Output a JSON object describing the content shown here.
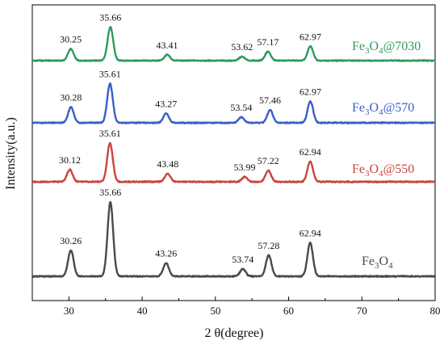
{
  "chart_data": {
    "type": "line",
    "xlabel": "2 θ(degree)",
    "ylabel": "Intensity(a.u.)",
    "xlim": [
      25,
      80
    ],
    "x_ticks": [
      30,
      40,
      50,
      60,
      70,
      80
    ],
    "grid": false,
    "series": [
      {
        "name": "Fe3O4@7030",
        "legend_parts": [
          "Fe",
          "3",
          "O",
          "4",
          "@7030"
        ],
        "color": "#2e9a5e",
        "peaks": [
          {
            "x": 30.25,
            "height": 0.18,
            "label": "30.25"
          },
          {
            "x": 35.66,
            "height": 0.52,
            "label": "35.66"
          },
          {
            "x": 43.41,
            "height": 0.09,
            "label": "43.41"
          },
          {
            "x": 53.62,
            "height": 0.06,
            "label": "53.62"
          },
          {
            "x": 57.17,
            "height": 0.14,
            "label": "57.17"
          },
          {
            "x": 62.97,
            "height": 0.22,
            "label": "62.97"
          }
        ]
      },
      {
        "name": "Fe3O4@570",
        "legend_parts": [
          "Fe",
          "3",
          "O",
          "4",
          "@570"
        ],
        "color": "#3a5fc8",
        "peaks": [
          {
            "x": 30.28,
            "height": 0.22,
            "label": "30.28"
          },
          {
            "x": 35.61,
            "height": 0.55,
            "label": "35.61"
          },
          {
            "x": 43.27,
            "height": 0.13,
            "label": "43.27"
          },
          {
            "x": 53.54,
            "height": 0.08,
            "label": "53.54"
          },
          {
            "x": 57.46,
            "height": 0.18,
            "label": "57.46"
          },
          {
            "x": 62.97,
            "height": 0.3,
            "label": "62.97"
          }
        ]
      },
      {
        "name": "Fe3O4@550",
        "legend_parts": [
          "Fe",
          "3",
          "O",
          "4",
          "@550"
        ],
        "color": "#c8463e",
        "peaks": [
          {
            "x": 30.12,
            "height": 0.15,
            "label": "30.12"
          },
          {
            "x": 35.61,
            "height": 0.48,
            "label": "35.61"
          },
          {
            "x": 43.48,
            "height": 0.1,
            "label": "43.48"
          },
          {
            "x": 53.99,
            "height": 0.06,
            "label": "53.99"
          },
          {
            "x": 57.22,
            "height": 0.14,
            "label": "57.22"
          },
          {
            "x": 62.94,
            "height": 0.25,
            "label": "62.94"
          }
        ]
      },
      {
        "name": "Fe3O4",
        "legend_parts": [
          "Fe",
          "3",
          "O",
          "4",
          ""
        ],
        "color": "#4a4a4a",
        "peaks": [
          {
            "x": 30.26,
            "height": 0.35,
            "label": "30.26"
          },
          {
            "x": 35.66,
            "height": 1.0,
            "label": "35.66"
          },
          {
            "x": 43.26,
            "height": 0.18,
            "label": "43.26"
          },
          {
            "x": 53.74,
            "height": 0.1,
            "label": "53.74"
          },
          {
            "x": 57.28,
            "height": 0.28,
            "label": "57.28"
          },
          {
            "x": 62.94,
            "height": 0.45,
            "label": "62.94"
          }
        ]
      }
    ]
  }
}
